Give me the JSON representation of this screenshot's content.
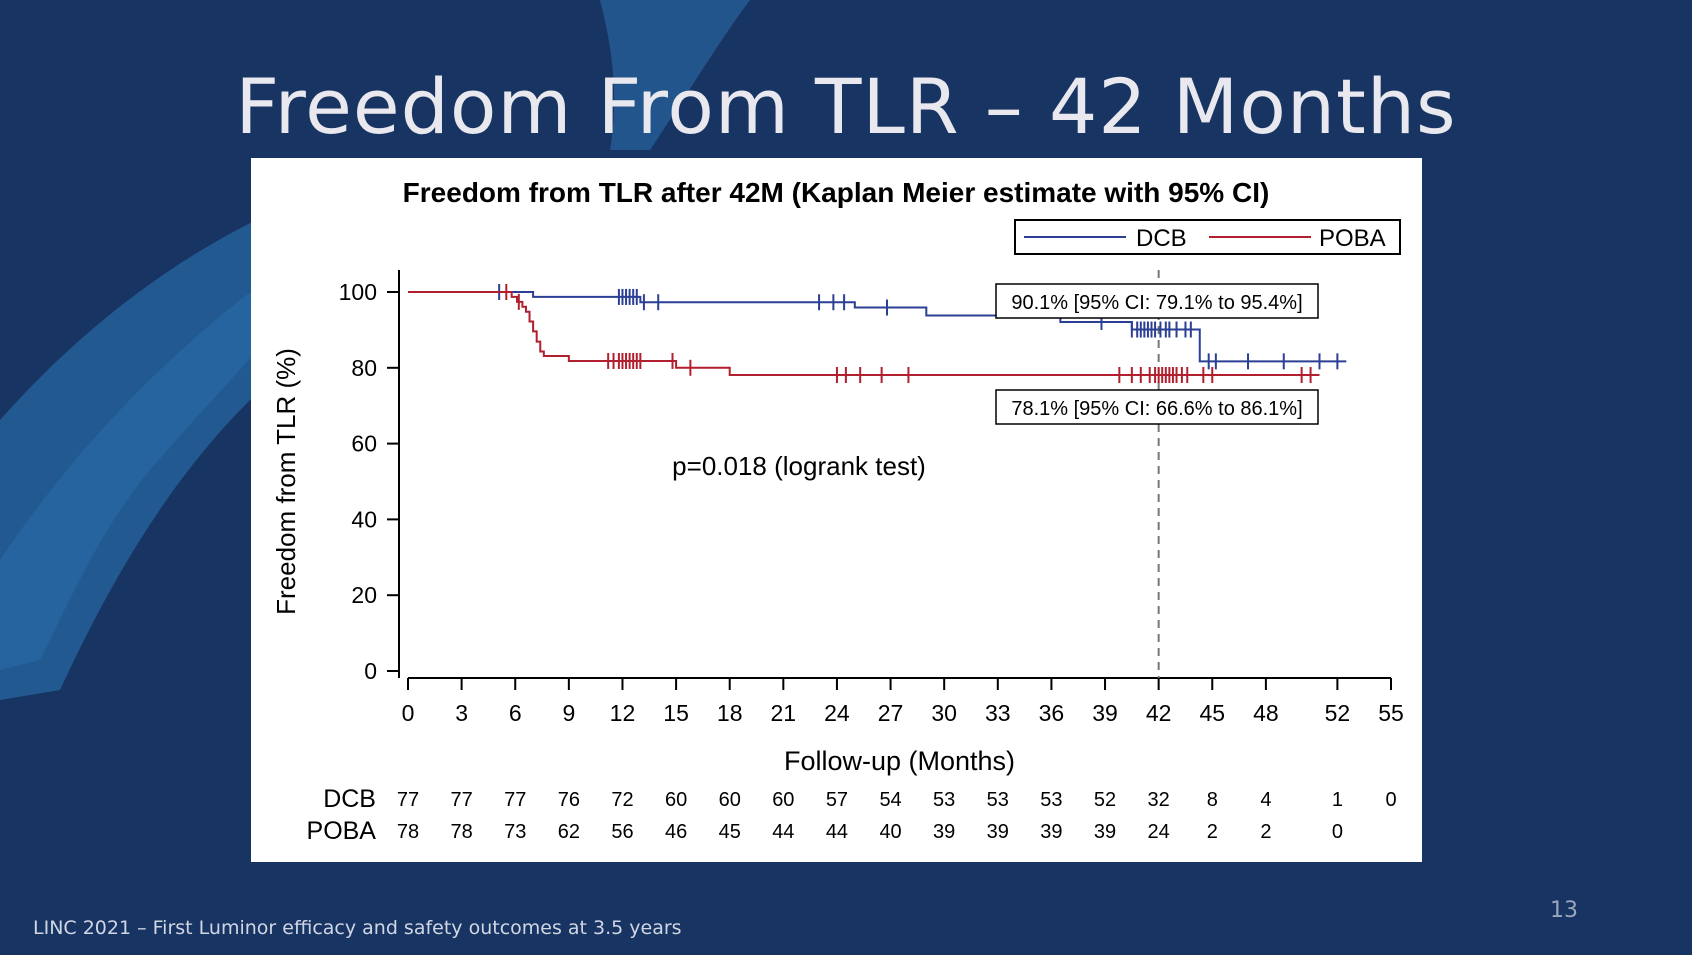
{
  "slide": {
    "title": "Freedom From TLR – 42 Months",
    "footer": "LINC 2021 – First Luminor efficacy and safety outcomes at 3.5 years",
    "page_number": "13",
    "background_color": "#183462"
  },
  "chart_data": {
    "type": "line",
    "subtype": "kaplan-meier",
    "title": "Freedom from TLR after 42M (Kaplan Meier estimate with 95% CI)",
    "xlabel": "Follow-up (Months)",
    "ylabel": "Freedom from TLR (%)",
    "xlim": [
      0,
      55
    ],
    "ylim": [
      0,
      100
    ],
    "xticks": [
      0,
      3,
      6,
      9,
      12,
      15,
      18,
      21,
      24,
      27,
      30,
      33,
      36,
      39,
      42,
      45,
      48,
      52,
      55
    ],
    "yticks": [
      0,
      20,
      40,
      60,
      80,
      100
    ],
    "legend_position": "top-right",
    "reference_line_x": 42,
    "series": [
      {
        "name": "DCB",
        "color": "#2b3f95",
        "steps": [
          [
            0,
            100
          ],
          [
            7,
            98.7
          ],
          [
            13,
            97.3
          ],
          [
            25,
            95.9
          ],
          [
            29,
            93.8
          ],
          [
            36.5,
            92.1
          ],
          [
            40.5,
            90.1
          ],
          [
            44.3,
            81.7
          ],
          [
            52.5,
            81.7
          ]
        ],
        "censored": [
          5.1,
          11.8,
          12,
          12.2,
          12.4,
          12.6,
          12.8,
          13.2,
          14,
          23,
          23.8,
          24.4,
          26.8,
          38.8,
          40.5,
          40.8,
          41,
          41.2,
          41.4,
          41.6,
          41.8,
          42.1,
          42.4,
          42.6,
          43,
          43.5,
          43.8,
          44.8,
          45.2,
          47,
          49,
          51,
          52
        ]
      },
      {
        "name": "POBA",
        "color": "#b21f2e",
        "steps": [
          [
            0,
            100
          ],
          [
            5.8,
            98.7
          ],
          [
            6.1,
            97.4
          ],
          [
            6.4,
            96.1
          ],
          [
            6.6,
            94.8
          ],
          [
            6.8,
            92.2
          ],
          [
            7,
            89.6
          ],
          [
            7.2,
            86.9
          ],
          [
            7.4,
            84.3
          ],
          [
            7.6,
            83.1
          ],
          [
            9,
            81.8
          ],
          [
            15,
            80
          ],
          [
            18,
            78.1
          ],
          [
            51,
            78.1
          ]
        ],
        "censored": [
          5.5,
          6.2,
          11.2,
          11.5,
          11.8,
          12,
          12.2,
          12.4,
          12.6,
          12.8,
          13,
          14.8,
          15.8,
          24,
          24.5,
          25.3,
          26.5,
          28,
          39.8,
          40.5,
          41,
          41.5,
          41.8,
          42,
          42.2,
          42.4,
          42.6,
          42.8,
          43,
          43.3,
          43.6,
          44.5,
          45,
          50,
          50.5
        ]
      }
    ],
    "annotations": [
      {
        "text": "90.1% [95% CI: 79.1% to 95.4%]",
        "series": "DCB"
      },
      {
        "text": "78.1% [95% CI: 66.6% to 86.1%]",
        "series": "POBA"
      },
      {
        "text": "p=0.018 (logrank test)"
      }
    ],
    "risk_table": {
      "times": [
        0,
        3,
        6,
        9,
        12,
        15,
        18,
        21,
        24,
        27,
        30,
        33,
        36,
        39,
        42,
        45,
        48,
        52,
        55
      ],
      "rows": [
        {
          "label": "DCB",
          "counts": [
            "77",
            "77",
            "77",
            "76",
            "72",
            "60",
            "60",
            "60",
            "57",
            "54",
            "53",
            "53",
            "53",
            "52",
            "32",
            "8",
            "4",
            "1",
            "0"
          ]
        },
        {
          "label": "POBA",
          "counts": [
            "78",
            "78",
            "73",
            "62",
            "56",
            "46",
            "45",
            "44",
            "44",
            "40",
            "39",
            "39",
            "39",
            "39",
            "24",
            "2",
            "2",
            "0",
            ""
          ]
        }
      ]
    }
  }
}
